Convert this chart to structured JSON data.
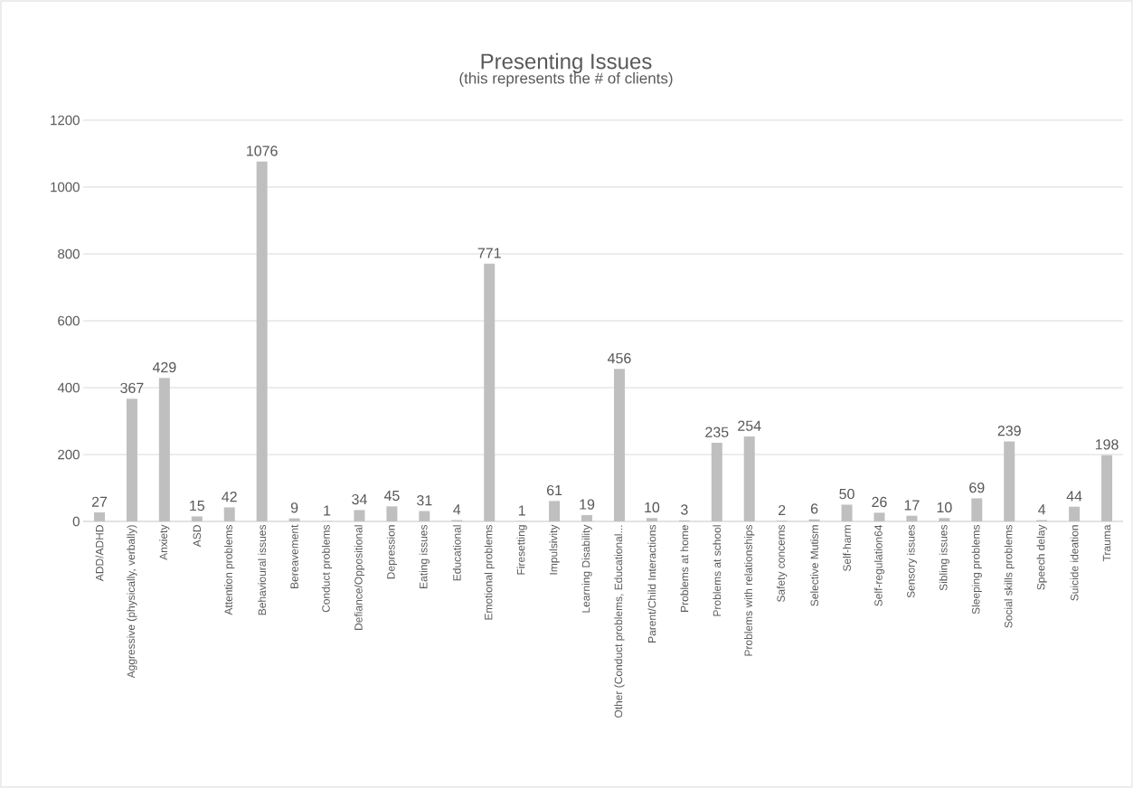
{
  "chart_data": {
    "type": "bar",
    "title": "Presenting Issues",
    "subtitle": "(this represents the # of clients)",
    "categories": [
      "ADD/ADHD",
      "Aggressive (physically, verbally)",
      "Anxiety",
      "ASD",
      "Attention problems",
      "Behavioural issues",
      "Bereavement",
      "Conduct problems",
      "Defiance/Oppositional",
      "Depression",
      "Eating issues",
      "Educational",
      "Emotional problems",
      "Firesetting",
      "Impulsivity",
      "Learning Disability",
      "Other (Conduct problems, Educational...",
      "Parent/Child Interactions",
      "Problems at home",
      "Problems at school",
      "Problems with relationships",
      "Safety concerns",
      "Selective Mutism",
      "Self-harm",
      "Self-regulation64",
      "Sensory issues",
      "Sibling issues",
      "Sleeping problems",
      "Social skills problems",
      "Speech delay",
      "Suicide ideation",
      "Trauma"
    ],
    "values": [
      27,
      367,
      429,
      15,
      42,
      1076,
      9,
      1,
      34,
      45,
      31,
      4,
      771,
      1,
      61,
      19,
      456,
      10,
      3,
      235,
      254,
      2,
      6,
      50,
      26,
      17,
      10,
      69,
      239,
      4,
      44,
      198
    ],
    "color": "#bfbfbf",
    "ylim": [
      0,
      1200
    ],
    "yticks": [
      0,
      200,
      400,
      600,
      800,
      1000,
      1200
    ],
    "grid": "y",
    "data_labels": true
  }
}
